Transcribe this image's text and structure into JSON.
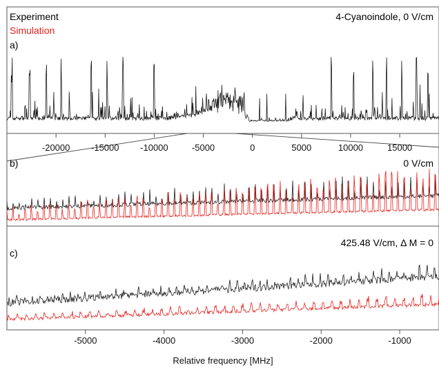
{
  "colors": {
    "experiment": "#1a1a1a",
    "simulation": "#e3211c",
    "axis": "#555555"
  },
  "legend": {
    "experiment": "Experiment",
    "simulation": "Simulation"
  },
  "panels": {
    "a": {
      "label": "a)",
      "title": "4-Cyanoindole, 0 V/cm"
    },
    "b": {
      "label": "b)",
      "title": "0 V/cm"
    },
    "c": {
      "label": "c)",
      "title": "425.48 V/cm, Δ M = 0"
    }
  },
  "xlabel": "Relative frequency [MHz]",
  "chart_data": [
    {
      "type": "line",
      "title": "4-Cyanoindole, 0 V/cm",
      "xlim": [
        -25000,
        19000
      ],
      "xticks": [
        -20000,
        -15000,
        -10000,
        -5000,
        0,
        5000,
        10000,
        15000
      ],
      "xtick_labels": [
        "-20000",
        "-15000",
        "-10000",
        "-5000",
        "0",
        "5000",
        "10000",
        "15000"
      ],
      "series": [
        {
          "name": "Experiment",
          "color": "#1a1a1a"
        }
      ],
      "zoom_region": [
        -6000,
        -500
      ]
    },
    {
      "type": "line",
      "title": "0 V/cm",
      "xlim": [
        -6000,
        -500
      ],
      "series": [
        {
          "name": "Experiment",
          "color": "#1a1a1a"
        },
        {
          "name": "Simulation",
          "color": "#e3211c"
        }
      ]
    },
    {
      "type": "line",
      "title": "425.48 V/cm, Δ M = 0",
      "xlim": [
        -6000,
        -500
      ],
      "xticks": [
        -5000,
        -4000,
        -3000,
        -2000,
        -1000
      ],
      "xtick_labels": [
        "-5000",
        "-4000",
        "-3000",
        "-2000",
        "-1000"
      ],
      "xlabel": "Relative frequency [MHz]",
      "series": [
        {
          "name": "Experiment",
          "color": "#1a1a1a"
        },
        {
          "name": "Simulation",
          "color": "#e3211c"
        }
      ]
    }
  ]
}
